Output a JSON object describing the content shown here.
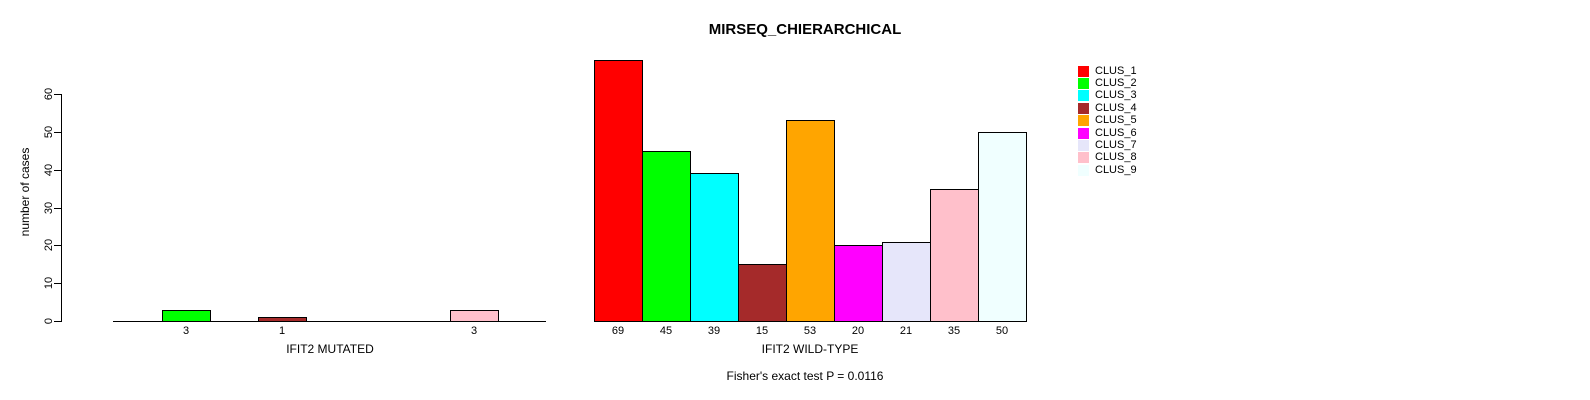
{
  "title": "MIRSEQ_CHIERARCHICAL",
  "footnote": "Fisher's exact test P = 0.0116",
  "y_axis": {
    "label": "number of cases",
    "ticks": [
      0,
      10,
      20,
      30,
      40,
      50,
      60
    ]
  },
  "legend": {
    "position": "right",
    "items": [
      {
        "label": "CLUS_1",
        "color": "#FF0000"
      },
      {
        "label": "CLUS_2",
        "color": "#00FF00"
      },
      {
        "label": "CLUS_3",
        "color": "#00FFFF"
      },
      {
        "label": "CLUS_4",
        "color": "#A52A2A"
      },
      {
        "label": "CLUS_5",
        "color": "#FFA500"
      },
      {
        "label": "CLUS_6",
        "color": "#FF00FF"
      },
      {
        "label": "CLUS_7",
        "color": "#E6E6FA"
      },
      {
        "label": "CLUS_8",
        "color": "#FFC0CB"
      },
      {
        "label": "CLUS_9",
        "color": "#F0FFFF"
      }
    ]
  },
  "chart_data": [
    {
      "type": "bar",
      "title": "",
      "xlabel": "IFIT2 MUTATED",
      "ylabel": "number of cases",
      "categories": [
        "CLUS_1",
        "CLUS_2",
        "CLUS_3",
        "CLUS_4",
        "CLUS_5",
        "CLUS_6",
        "CLUS_7",
        "CLUS_8",
        "CLUS_9"
      ],
      "values": [
        0,
        3,
        0,
        1,
        0,
        0,
        0,
        3,
        0
      ],
      "bar_labels": [
        "",
        "3",
        "",
        "1",
        "",
        "",
        "",
        "3",
        ""
      ],
      "colors": [
        "#FF0000",
        "#00FF00",
        "#00FFFF",
        "#A52A2A",
        "#FFA500",
        "#FF00FF",
        "#E6E6FA",
        "#FFC0CB",
        "#F0FFFF"
      ],
      "ylim": [
        0,
        60
      ],
      "grid": false,
      "legend_position": "none"
    },
    {
      "type": "bar",
      "title": "",
      "xlabel": "IFIT2 WILD-TYPE",
      "ylabel": "number of cases",
      "categories": [
        "CLUS_1",
        "CLUS_2",
        "CLUS_3",
        "CLUS_4",
        "CLUS_5",
        "CLUS_6",
        "CLUS_7",
        "CLUS_8",
        "CLUS_9"
      ],
      "values": [
        69,
        45,
        39,
        15,
        53,
        20,
        21,
        35,
        50
      ],
      "bar_labels": [
        "69",
        "45",
        "39",
        "15",
        "53",
        "20",
        "21",
        "35",
        "50"
      ],
      "colors": [
        "#FF0000",
        "#00FF00",
        "#00FFFF",
        "#A52A2A",
        "#FFA500",
        "#FF00FF",
        "#E6E6FA",
        "#FFC0CB",
        "#F0FFFF"
      ],
      "ylim": [
        0,
        60
      ],
      "grid": false,
      "legend_position": "right"
    }
  ]
}
